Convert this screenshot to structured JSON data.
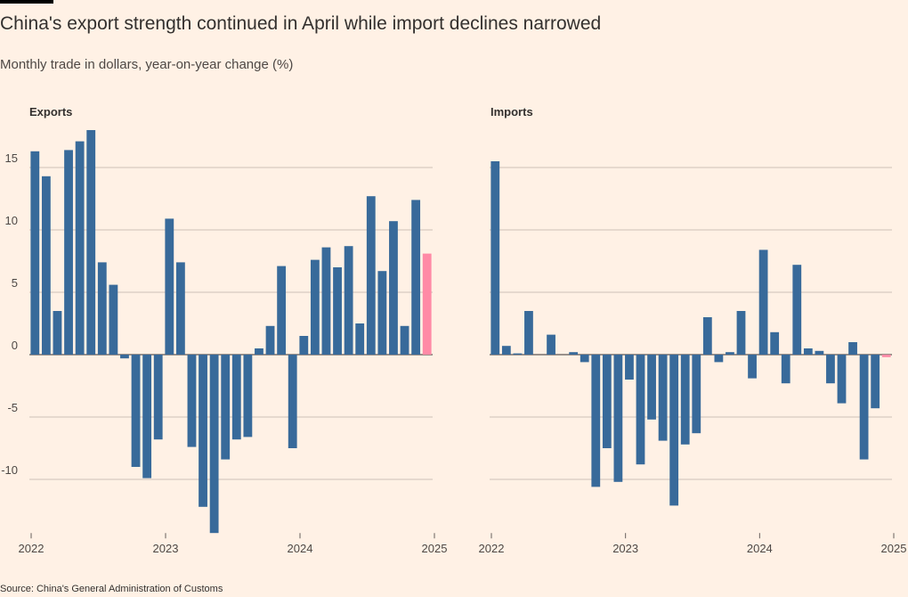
{
  "title": "China's export strength continued in April while import declines narrowed",
  "subtitle": "Monthly trade in dollars, year-on-year change (%)",
  "source": "Source: China's General Administration of Customs",
  "colors": {
    "bar": "#386A9A",
    "highlight": "#FF8AA6",
    "grid": "#CCC1B7",
    "background": "#FFF1E5"
  },
  "chart_data": [
    {
      "type": "bar",
      "title": "Exports",
      "x_ticks": [
        "2022",
        "2023",
        "2024",
        "2025"
      ],
      "y_ticks": [
        "15",
        "10",
        "5",
        "0",
        "-5",
        "-10"
      ],
      "ylim": [
        -14.3,
        18.2
      ],
      "start": "2022-01",
      "highlight_last": true,
      "values": [
        16.3,
        14.3,
        3.5,
        16.4,
        17.1,
        18.0,
        7.4,
        5.6,
        -0.3,
        -9.0,
        -9.9,
        -6.8,
        10.9,
        7.4,
        -7.4,
        -12.2,
        -14.3,
        -8.4,
        -6.8,
        -6.6,
        0.5,
        2.3,
        7.1,
        -7.5,
        1.5,
        7.6,
        8.6,
        7.0,
        8.7,
        2.5,
        12.7,
        6.7,
        10.7,
        2.3,
        12.4,
        8.1
      ]
    },
    {
      "type": "bar",
      "title": "Imports",
      "x_ticks": [
        "2022",
        "2023",
        "2024",
        "2025"
      ],
      "y_ticks": [],
      "ylim": [
        -14.3,
        18.2
      ],
      "start": "2022-01",
      "highlight_last": true,
      "values": [
        15.5,
        0.7,
        0.1,
        3.5,
        null,
        1.6,
        null,
        0.2,
        -0.6,
        -10.6,
        -7.5,
        -10.2,
        -2.0,
        -8.8,
        -5.2,
        -6.9,
        -12.1,
        -7.2,
        -6.3,
        3.0,
        -0.6,
        0.2,
        3.5,
        -1.9,
        8.4,
        1.8,
        -2.3,
        7.2,
        0.5,
        0.3,
        -2.3,
        -3.9,
        1.0,
        -8.4,
        -4.3,
        -0.2
      ]
    }
  ]
}
